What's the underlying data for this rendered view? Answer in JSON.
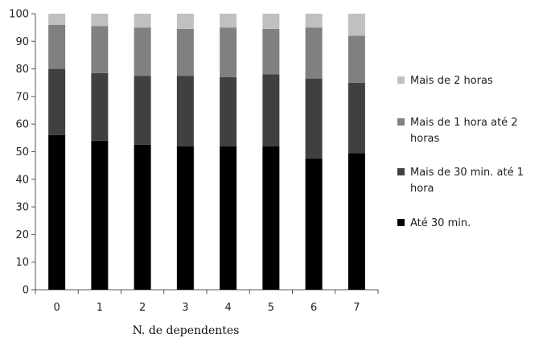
{
  "chart_data": {
    "type": "bar",
    "stacked": true,
    "title": "",
    "xlabel": "N. de dependentes",
    "ylabel": "",
    "ylim": [
      0,
      100
    ],
    "yticks": [
      0,
      10,
      20,
      30,
      40,
      50,
      60,
      70,
      80,
      90,
      100
    ],
    "categories": [
      "0",
      "1",
      "2",
      "3",
      "4",
      "5",
      "6",
      "7"
    ],
    "grid": false,
    "legend_position": "right",
    "series": [
      {
        "name": "Até 30 min.",
        "color": "#000000",
        "values": [
          56,
          54,
          52.5,
          52,
          52,
          52,
          47.5,
          49.5
        ]
      },
      {
        "name": "Mais de 30 min. até 1 hora",
        "color": "#404040",
        "values": [
          24,
          24.5,
          25,
          25.5,
          25,
          26,
          29,
          25.5
        ]
      },
      {
        "name": "Mais de 1 hora até 2 horas",
        "color": "#808080",
        "values": [
          16,
          17,
          17.5,
          17,
          18,
          16.5,
          18.5,
          17
        ]
      },
      {
        "name": "Mais de 2 horas",
        "color": "#c0c0c0",
        "values": [
          4,
          4.5,
          5,
          5.5,
          5,
          5.5,
          5,
          8
        ]
      }
    ],
    "legend": [
      {
        "lines": [
          "Mais de 2 horas"
        ],
        "color": "#c0c0c0"
      },
      {
        "lines": [
          "Mais de 1 hora até 2",
          "horas"
        ],
        "color": "#808080"
      },
      {
        "lines": [
          "Mais de 30 min. até 1",
          "hora"
        ],
        "color": "#404040"
      },
      {
        "lines": [
          "Até 30 min."
        ],
        "color": "#000000"
      }
    ]
  }
}
